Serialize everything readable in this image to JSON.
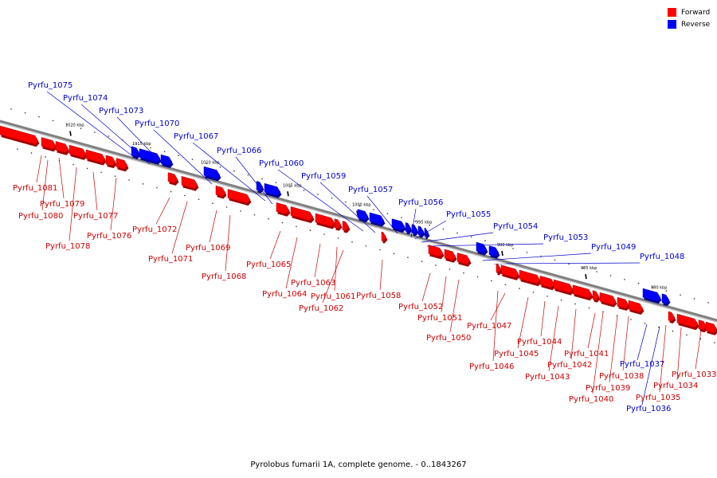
{
  "legend": {
    "forward_label": "Forward",
    "reverse_label": "Reverse",
    "forward_color": "#ff0000",
    "reverse_color": "#0000ff"
  },
  "caption": "Pyrolobus fumarii 1A, complete genome. - 0..1843267",
  "ticks": [
    "1020 kbp",
    "1015 kbp",
    "1010 kbp",
    "1005 kbp",
    "1000 kbp",
    "995 kbp",
    "990 kbp",
    "985 kbp",
    "980 kbp"
  ],
  "genes_reverse": [
    "Pyrfu_1075",
    "Pyrfu_1074",
    "Pyrfu_1073",
    "Pyrfu_1070",
    "Pyrfu_1067",
    "Pyrfu_1066",
    "Pyrfu_1060",
    "Pyrfu_1059",
    "Pyrfu_1057",
    "Pyrfu_1056",
    "Pyrfu_1055",
    "Pyrfu_1054",
    "Pyrfu_1053",
    "Pyrfu_1049",
    "Pyrfu_1048",
    "Pyrfu_1037",
    "Pyrfu_1036"
  ],
  "genes_forward": [
    "Pyrfu_1081",
    "Pyrfu_1079",
    "Pyrfu_1080",
    "Pyrfu_1077",
    "Pyrfu_1078",
    "Pyrfu_1076",
    "Pyrfu_1072",
    "Pyrfu_1071",
    "Pyrfu_1069",
    "Pyrfu_1068",
    "Pyrfu_1065",
    "Pyrfu_1064",
    "Pyrfu_1063",
    "Pyrfu_1061",
    "Pyrfu_1062",
    "Pyrfu_1058",
    "Pyrfu_1052",
    "Pyrfu_1051",
    "Pyrfu_1050",
    "Pyrfu_1047",
    "Pyrfu_1045",
    "Pyrfu_1046",
    "Pyrfu_1044",
    "Pyrfu_1043",
    "Pyrfu_1042",
    "Pyrfu_1041",
    "Pyrfu_1040",
    "Pyrfu_1039",
    "Pyrfu_1038",
    "Pyrfu_1035",
    "Pyrfu_1034",
    "Pyrfu_1033"
  ]
}
